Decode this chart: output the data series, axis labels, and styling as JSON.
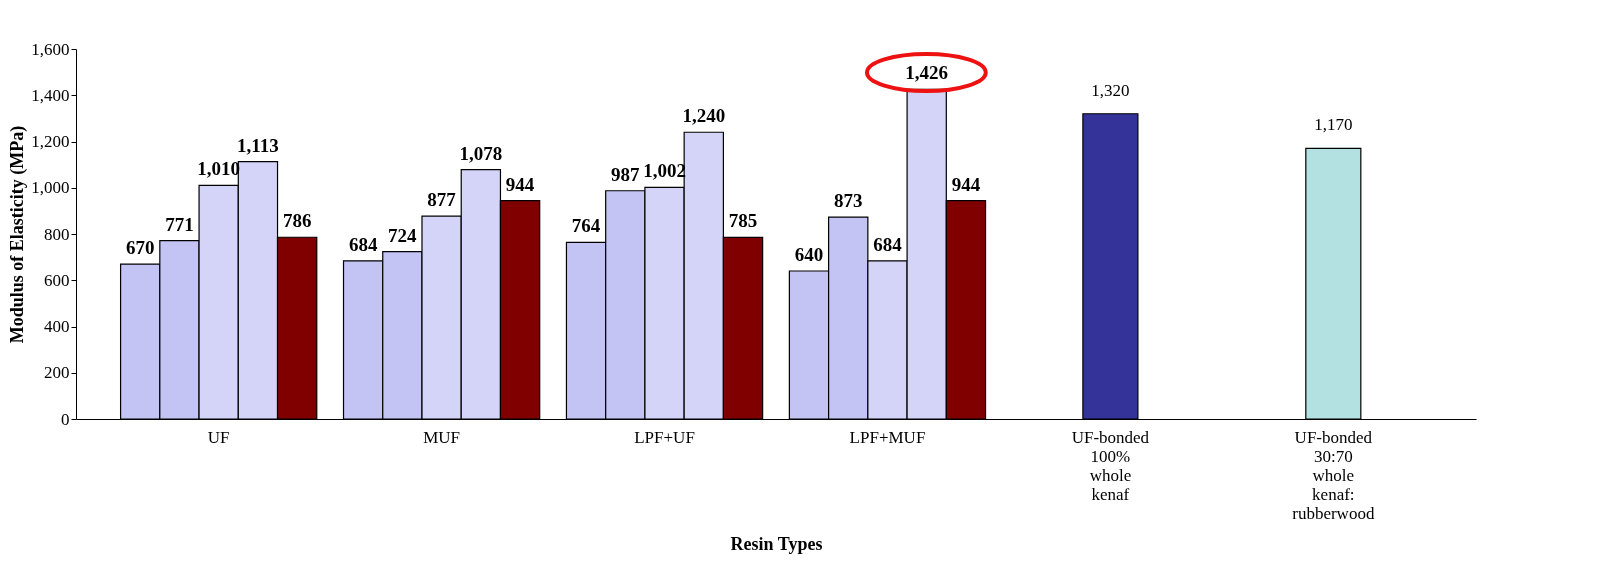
{
  "chart_data": {
    "type": "bar",
    "xlabel": "Resin Types",
    "ylabel": "Modulus of Elasticity (MPa)",
    "categories": [
      "UF",
      "MUF",
      "LPF+UF",
      "LPF+MUF",
      "UF-bonded 100% whole kenaf",
      "UF-bonded 30:70 whole kenaf: rubberwood"
    ],
    "series": [
      {
        "color": "#c4c4f4",
        "values": [
          670,
          684,
          764,
          640,
          null,
          null
        ],
        "value_labels": [
          "670",
          "684",
          "764",
          "640",
          null,
          null
        ]
      },
      {
        "color": "#c4c4f4",
        "values": [
          771,
          724,
          987,
          873,
          null,
          null
        ],
        "value_labels": [
          "771",
          "724",
          "987",
          "873",
          null,
          null
        ]
      },
      {
        "color": "#d4d4f8",
        "values": [
          1010,
          877,
          1002,
          684,
          null,
          null
        ],
        "value_labels": [
          "1,010",
          "877",
          "1,002",
          "684",
          null,
          null
        ]
      },
      {
        "color": "#d4d4f8",
        "values": [
          1113,
          1078,
          1240,
          1426,
          null,
          null
        ],
        "value_labels": [
          "1,113",
          "1,078",
          "1,240",
          "1,426",
          null,
          null
        ]
      },
      {
        "color": "#800000",
        "values": [
          786,
          944,
          785,
          944,
          null,
          null
        ],
        "value_labels": [
          "786",
          "944",
          "785",
          "944",
          null,
          null
        ]
      },
      {
        "color": "#333399",
        "values": [
          null,
          null,
          null,
          null,
          1320,
          null
        ],
        "value_labels": [
          null,
          null,
          null,
          null,
          "1,320",
          null
        ]
      },
      {
        "color": "#b3e0e0",
        "values": [
          null,
          null,
          null,
          null,
          null,
          1170
        ],
        "value_labels": [
          null,
          null,
          null,
          null,
          null,
          "1,170"
        ]
      }
    ],
    "ylim": [
      0,
      1600
    ],
    "yticks": [
      0,
      {
        "value": 200,
        "label": "200"
      },
      {
        "value": 400,
        "label": "400"
      },
      {
        "value": 600,
        "label": "600"
      },
      {
        "value": 800,
        "label": "800"
      },
      {
        "value": 1000,
        "label": "1,000"
      },
      {
        "value": 1200,
        "label": "1,200"
      },
      {
        "value": 1400,
        "label": "1,400"
      },
      {
        "value": 1600,
        "label": "1,600"
      }
    ],
    "grid": false
  }
}
